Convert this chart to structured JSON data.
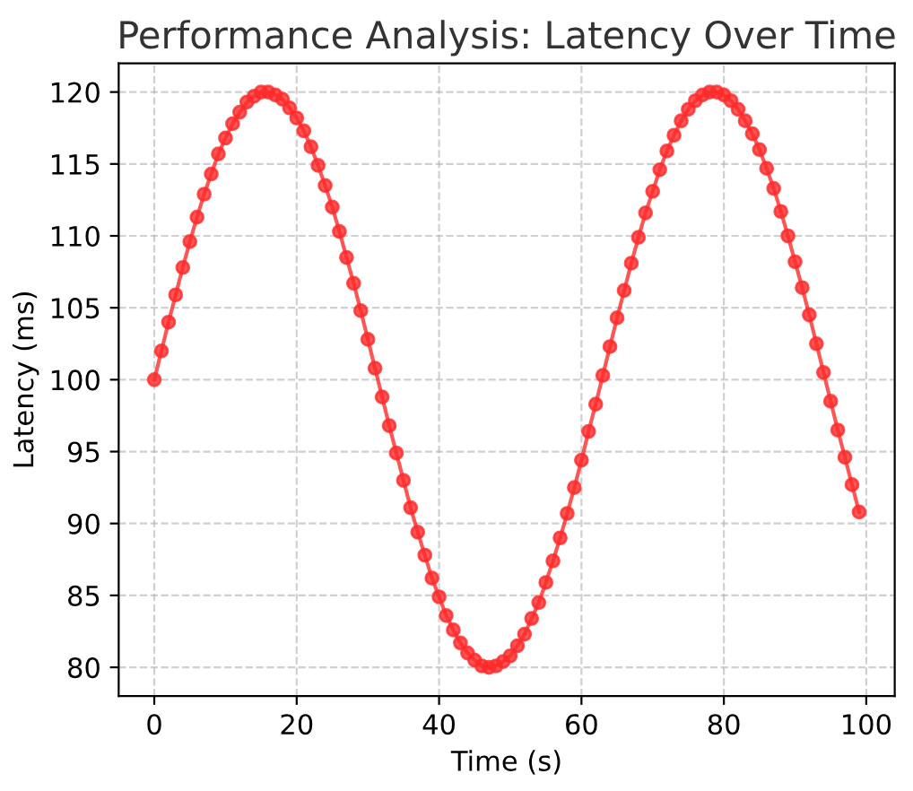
{
  "chart_data": {
    "type": "line",
    "title": "Performance Analysis: Latency Over Time",
    "xlabel": "Time (s)",
    "ylabel": "Latency (ms)",
    "x": [
      0,
      1,
      2,
      3,
      4,
      5,
      6,
      7,
      8,
      9,
      10,
      11,
      12,
      13,
      14,
      15,
      16,
      17,
      18,
      19,
      20,
      21,
      22,
      23,
      24,
      25,
      26,
      27,
      28,
      29,
      30,
      31,
      32,
      33,
      34,
      35,
      36,
      37,
      38,
      39,
      40,
      41,
      42,
      43,
      44,
      45,
      46,
      47,
      48,
      49,
      50,
      51,
      52,
      53,
      54,
      55,
      56,
      57,
      58,
      59,
      60,
      61,
      62,
      63,
      64,
      65,
      66,
      67,
      68,
      69,
      70,
      71,
      72,
      73,
      74,
      75,
      76,
      77,
      78,
      79,
      80,
      81,
      82,
      83,
      84,
      85,
      86,
      87,
      88,
      89,
      90,
      91,
      92,
      93,
      94,
      95,
      96,
      97,
      98,
      99
    ],
    "series": [
      {
        "color": "#ff2b2b",
        "values": [
          100,
          102.0,
          104.0,
          105.9,
          107.8,
          109.6,
          111.3,
          112.9,
          114.3,
          115.7,
          116.8,
          117.8,
          118.6,
          119.3,
          119.7,
          120.0,
          120.0,
          119.8,
          119.5,
          118.9,
          118.2,
          117.3,
          116.2,
          114.9,
          113.5,
          112.0,
          110.3,
          108.5,
          106.7,
          104.8,
          102.8,
          100.8,
          98.8,
          96.8,
          94.9,
          93.0,
          91.1,
          89.4,
          87.8,
          86.2,
          84.9,
          83.6,
          82.6,
          81.7,
          81.0,
          80.5,
          80.1,
          80.0,
          80.1,
          80.4,
          80.8,
          81.5,
          82.3,
          83.4,
          84.5,
          85.9,
          87.4,
          89.0,
          90.7,
          92.5,
          94.4,
          96.4,
          98.3,
          100.3,
          102.3,
          104.3,
          106.2,
          108.1,
          109.9,
          111.6,
          113.1,
          114.6,
          115.9,
          117.0,
          118.0,
          118.8,
          119.4,
          119.8,
          120.0,
          120.0,
          119.8,
          119.4,
          118.8,
          118.0,
          117.1,
          116.0,
          114.7,
          113.3,
          111.7,
          110.0,
          108.2,
          106.4,
          104.5,
          102.5,
          100.5,
          98.5,
          96.5,
          94.6,
          92.7,
          90.8
        ]
      }
    ],
    "xlim": [
      -5,
      104
    ],
    "ylim": [
      78,
      122
    ],
    "xticks": [
      0,
      20,
      40,
      60,
      80,
      100
    ],
    "yticks": [
      80,
      85,
      90,
      95,
      100,
      105,
      110,
      115,
      120
    ],
    "grid": true,
    "marker": "circle",
    "line_style": "solid"
  }
}
